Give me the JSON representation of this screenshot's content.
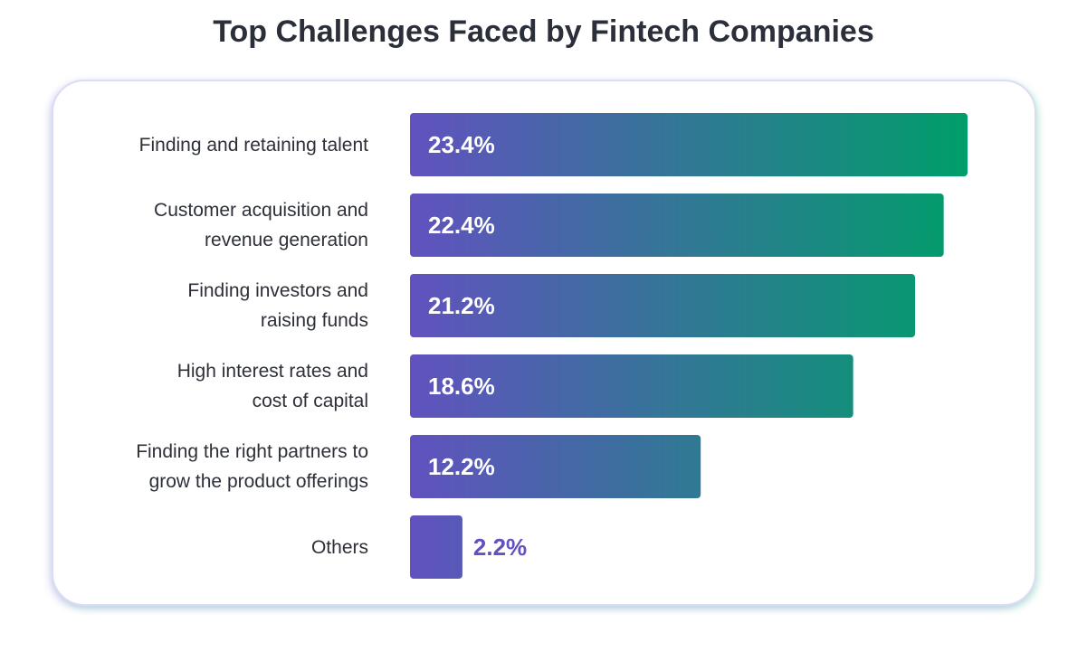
{
  "chart_data": {
    "type": "bar",
    "orientation": "horizontal",
    "title": "Top Challenges Faced by Fintech Companies",
    "categories": [
      "Finding and retaining talent",
      "Customer acquisition and\nrevenue generation",
      "Finding investors and\nraising funds",
      "High interest rates and\ncost of capital",
      "Finding the right partners to\ngrow the product offerings",
      "Others"
    ],
    "values": [
      23.4,
      22.4,
      21.2,
      18.6,
      12.2,
      2.2
    ],
    "value_labels": [
      "23.4%",
      "22.4%",
      "21.2%",
      "18.6%",
      "12.2%",
      "2.2%"
    ],
    "gradient": [
      "#6152bf",
      "#009e6a"
    ],
    "grid": false
  }
}
